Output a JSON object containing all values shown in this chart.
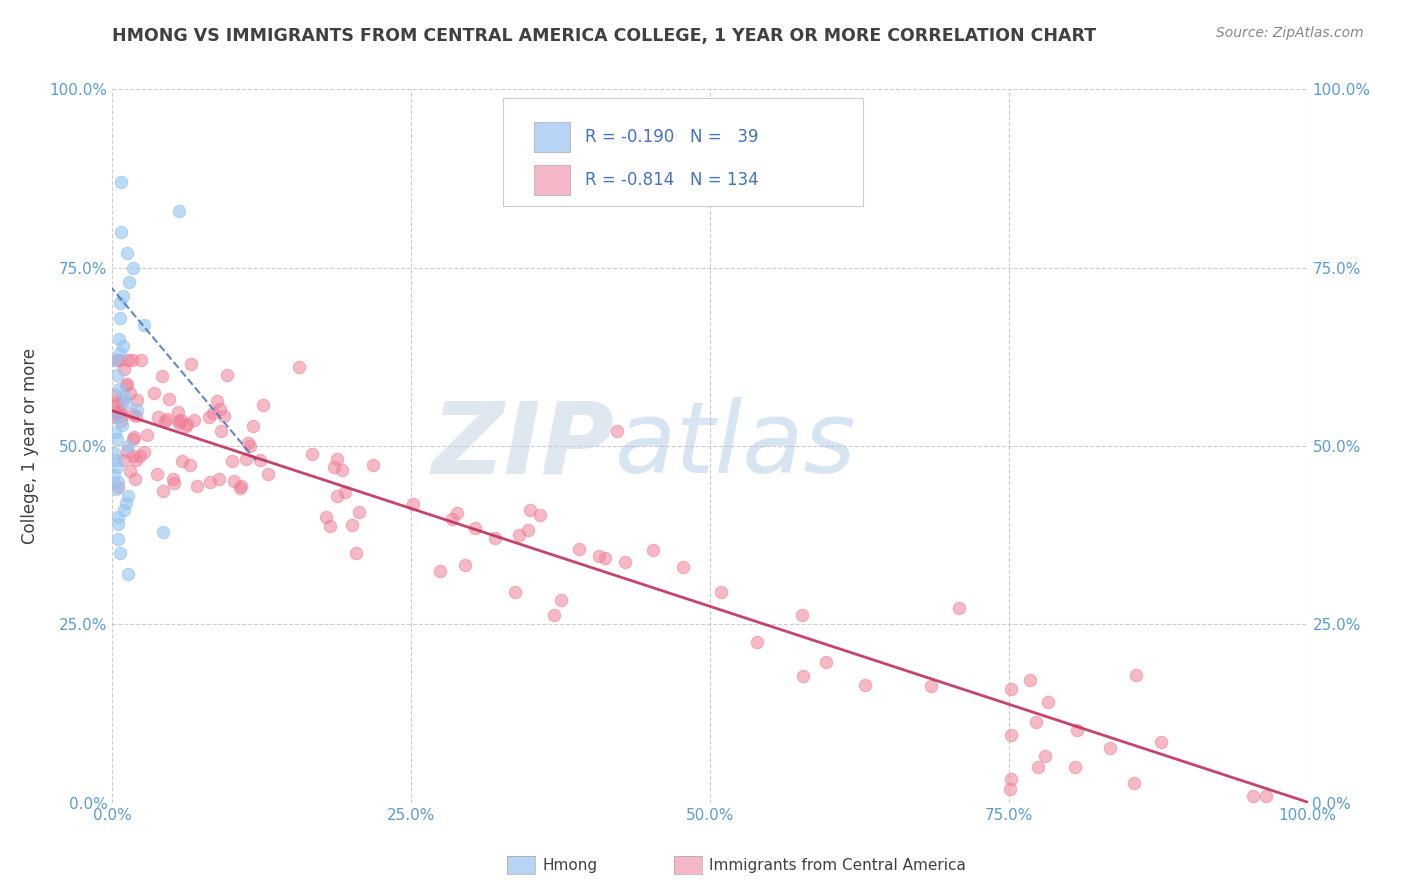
{
  "title": "HMONG VS IMMIGRANTS FROM CENTRAL AMERICA COLLEGE, 1 YEAR OR MORE CORRELATION CHART",
  "source": "Source: ZipAtlas.com",
  "ylabel": "College, 1 year or more",
  "x_tick_labels": [
    "0.0%",
    "25.0%",
    "50.0%",
    "75.0%",
    "100.0%"
  ],
  "y_tick_labels": [
    "0.0%",
    "25.0%",
    "50.0%",
    "75.0%",
    "100.0%"
  ],
  "watermark_part1": "ZIP",
  "watermark_part2": "atlas",
  "legend_hmong_R": "-0.190",
  "legend_hmong_N": "39",
  "legend_ca_R": "-0.814",
  "legend_ca_N": "134",
  "hmong_color": "#94c4f0",
  "ca_color": "#f08098",
  "hmong_line_color": "#4472c4",
  "ca_line_color": "#c0305a",
  "background_color": "#ffffff",
  "grid_color": "#c8c8c8",
  "title_color": "#404040",
  "source_color": "#888888",
  "axis_label_color": "#5b9bd5",
  "legend_R_color": "#4472c4",
  "legend_box_color_hmong": "#b8d4f4",
  "legend_box_color_ca": "#f4b8c8",
  "xlim": [
    0.0,
    1.0
  ],
  "ylim": [
    0.0,
    1.0
  ],
  "hmong_trendline_x": [
    -0.02,
    0.12
  ],
  "hmong_trendline_y": [
    0.76,
    0.48
  ],
  "ca_trendline_x": [
    -0.01,
    1.02
  ],
  "ca_trendline_y": [
    0.555,
    -0.01
  ]
}
